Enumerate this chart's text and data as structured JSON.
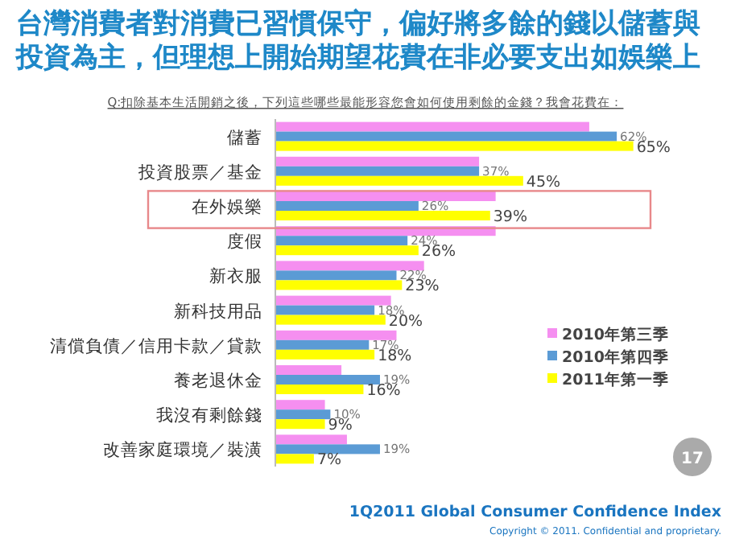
{
  "chart_data": {
    "type": "bar",
    "orientation": "horizontal",
    "title": "台灣消費者對消費已習慣保守，偏好將多餘的錢以儲蓄與投資為主，但理想上開始期望花費在非必要支出如娛樂上",
    "subtitle": "Q:扣除基本生活開銷之後，下列這些哪些最能形容您會如何使用剩餘的金錢？我會花費在：",
    "categories": [
      "儲蓄",
      "投資股票／基金",
      "在外娛樂",
      "度假",
      "新衣服",
      "新科技用品",
      "清償負債／信用卡款／貸款",
      "養老退休金",
      "我沒有剩餘錢",
      "改善家庭環境／裝潢"
    ],
    "series": [
      {
        "name": "2010年第三季",
        "color": "#f58ff0",
        "values": [
          57,
          37,
          40,
          40,
          27,
          21,
          22,
          12,
          9,
          13
        ]
      },
      {
        "name": "2010年第四季",
        "color": "#5b9bd5",
        "values": [
          62,
          37,
          26,
          24,
          22,
          18,
          17,
          19,
          10,
          19
        ],
        "value_labels": [
          "62%",
          "37%",
          "26%",
          "24%",
          "22%",
          "18%",
          "17%",
          "19%",
          "10%",
          "19%"
        ]
      },
      {
        "name": "2011年第一季",
        "color": "#ffff00",
        "values": [
          65,
          45,
          39,
          26,
          23,
          20,
          18,
          16,
          9,
          7
        ],
        "value_labels": [
          "65%",
          "45%",
          "39%",
          "26%",
          "23%",
          "20%",
          "18%",
          "16%",
          "9%",
          "7%"
        ]
      }
    ],
    "legend": "right",
    "annotations": [
      "17",
      "1Q2011 Global Consumer Confidence Index",
      "Copyright © 2011. Confidential and proprietary."
    ]
  }
}
